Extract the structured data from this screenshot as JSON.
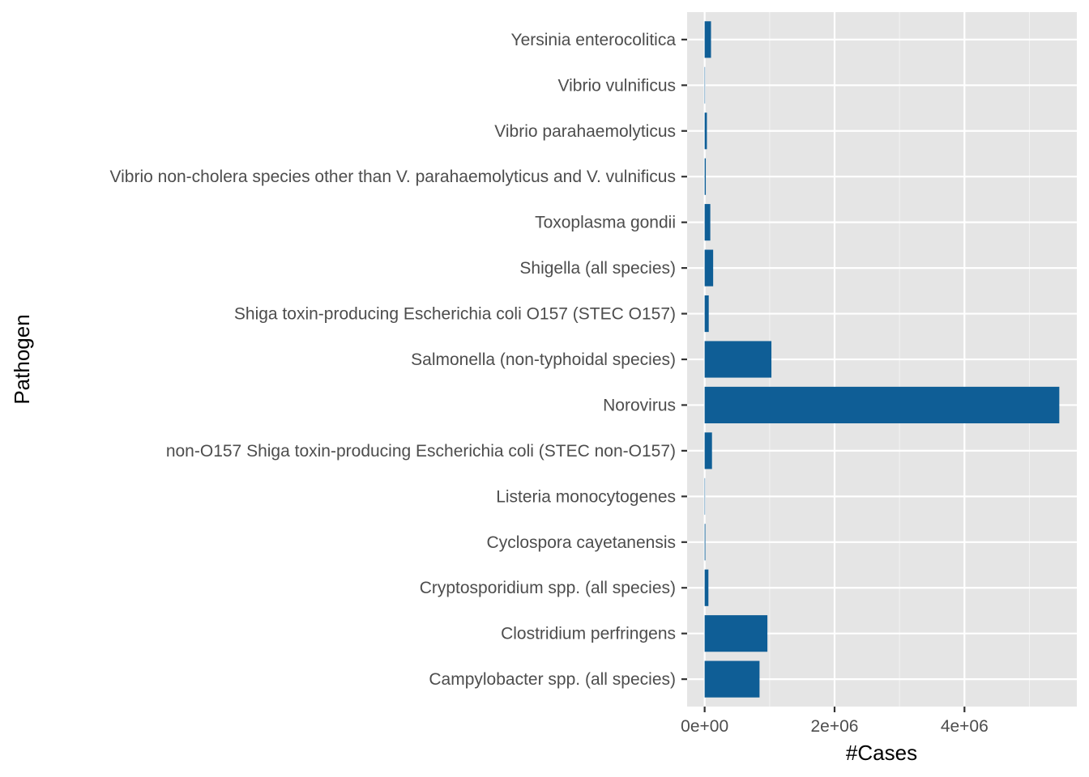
{
  "chart_data": {
    "type": "bar",
    "orientation": "horizontal",
    "xlabel": "#Cases",
    "ylabel": "Pathogen",
    "xlim": [
      -270000,
      5730000
    ],
    "xticks": [
      0,
      2000000,
      4000000
    ],
    "xtick_labels": [
      "0e+00",
      "2e+06",
      "4e+06"
    ],
    "grid": true,
    "bar_color": "#0f5e96",
    "panel_color": "#e5e5e5",
    "categories": [
      "Campylobacter spp. (all species)",
      "Clostridium perfringens",
      "Cryptosporidium spp. (all species)",
      "Cyclospora cayetanensis",
      "Listeria monocytogenes",
      "non-O157 Shiga toxin-producing Escherichia coli (STEC non-O157)",
      "Norovirus",
      "Salmonella (non-typhoidal species)",
      "Shiga toxin-producing Escherichia coli O157 (STEC O157)",
      "Shigella (all species)",
      "Toxoplasma gondii",
      "Vibrio non-cholera species other than V. parahaemolyticus and V. vulnificus",
      "Vibrio parahaemolyticus",
      "Vibrio vulnificus",
      "Yersinia enterocolitica"
    ],
    "values": [
      845000,
      966000,
      58000,
      11000,
      1600,
      113000,
      5460000,
      1028000,
      63000,
      131000,
      87000,
      17600,
      34700,
      96,
      98000
    ]
  }
}
